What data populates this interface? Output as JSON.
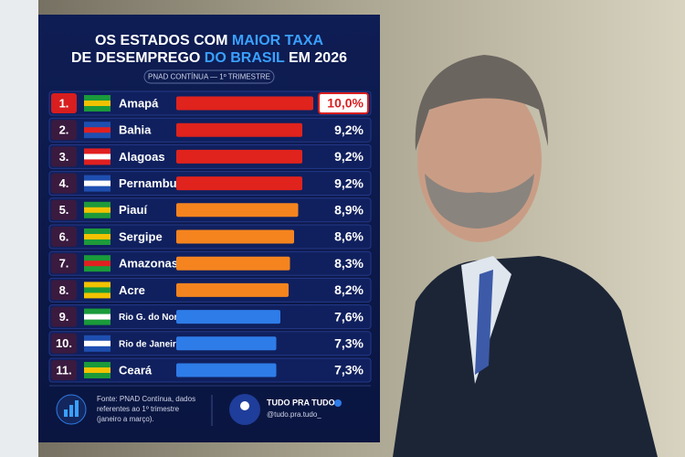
{
  "chart_data": {
    "type": "bar",
    "title_line1": [
      "OS ESTADOS COM ",
      "MAIOR TAXA"
    ],
    "title_line2": [
      "DE DESEMPREGO ",
      "DO BRASIL",
      " EM 2026"
    ],
    "subtitle": "PNAD CONTÍNUA — 1º TRIMESTRE",
    "ranks": [
      "1.",
      "2.",
      "3.",
      "4.",
      "5.",
      "6.",
      "7.",
      "8.",
      "9.",
      "10.",
      "11."
    ],
    "categories": [
      "Amapá",
      "Bahia",
      "Alagoas",
      "Pernambuco",
      "Piauí",
      "Sergipe",
      "Amazonas",
      "Acre",
      "Rio G. do Norte",
      "Rio de Janeiro",
      "Ceará"
    ],
    "values": [
      10.0,
      9.2,
      9.2,
      9.2,
      8.9,
      8.6,
      8.3,
      8.2,
      7.6,
      7.3,
      7.3
    ],
    "value_labels": [
      "10,0%",
      "9,2%",
      "9,2%",
      "9,2%",
      "8,9%",
      "8,6%",
      "8,3%",
      "8,2%",
      "7,6%",
      "7,3%",
      "7,3%"
    ],
    "colors": [
      "#e0231c",
      "#e0231c",
      "#e0231c",
      "#e0231c",
      "#f5841f",
      "#f5841f",
      "#f5841f",
      "#f5841f",
      "#2e7ce8",
      "#2e7ce8",
      "#2e7ce8"
    ],
    "xlim": [
      0,
      10
    ],
    "source": [
      "Fonte: PNAD Contínua, dados",
      "referentes ao 1º trimestre",
      "(janeiro a março)."
    ],
    "brand": "TUDO PRA TUDO",
    "handle": "@tudo.pra.tudo_"
  }
}
